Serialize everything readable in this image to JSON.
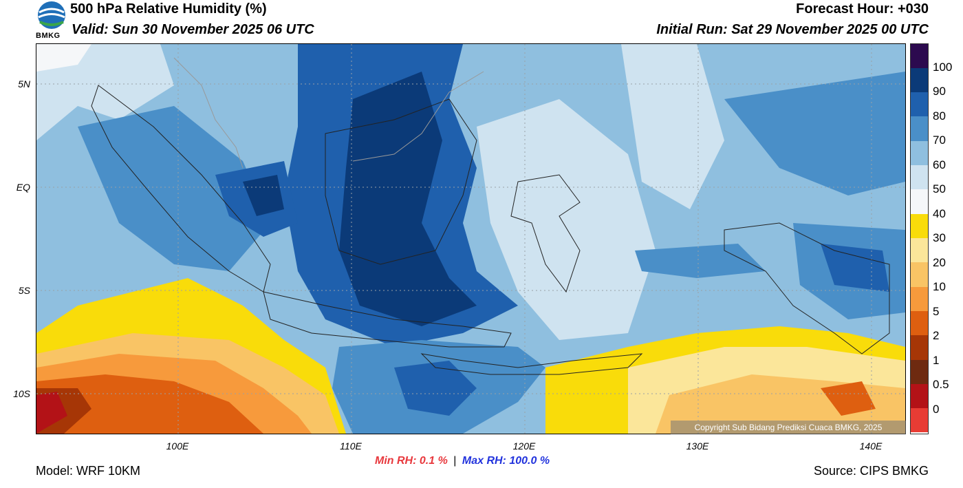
{
  "header": {
    "title": "500 hPa Relative Humidity (%)",
    "valid": "Valid: Sun 30 November 2025 06 UTC",
    "forecast_hour": "Forecast Hour: +030",
    "initial_run": "Initial Run: Sat 29 November 2025 00 UTC",
    "logo_text": "BMKG"
  },
  "axes": {
    "lat_labels": [
      "5N",
      "EQ",
      "5S",
      "10S"
    ],
    "lon_labels": [
      "100E",
      "110E",
      "120E",
      "130E",
      "140E"
    ]
  },
  "colorbar": {
    "labels": [
      "100",
      "90",
      "80",
      "70",
      "60",
      "50",
      "40",
      "30",
      "20",
      "10",
      "5",
      "2",
      "1",
      "0.5",
      "0"
    ],
    "colors": [
      "#2c0a4f",
      "#0b3a78",
      "#1f60ad",
      "#4a8fc8",
      "#8fbfdf",
      "#cfe3f0",
      "#f5f7f9",
      "#f9dc0a",
      "#fbe69a",
      "#f9c465",
      "#f79a3c",
      "#de5f10",
      "#a63606",
      "#6e2a10",
      "#b31217",
      "#e83c34"
    ]
  },
  "stats": {
    "min_label": "Min RH:",
    "min_value": "0.1 %",
    "max_label": "Max RH:",
    "max_value": "100.0 %"
  },
  "footer": {
    "copyright": "Copyright Sub Bidang Prediksi Cuaca BMKG, 2025",
    "model": "Model: WRF 10KM",
    "source": "Source: CIPS BMKG"
  }
}
